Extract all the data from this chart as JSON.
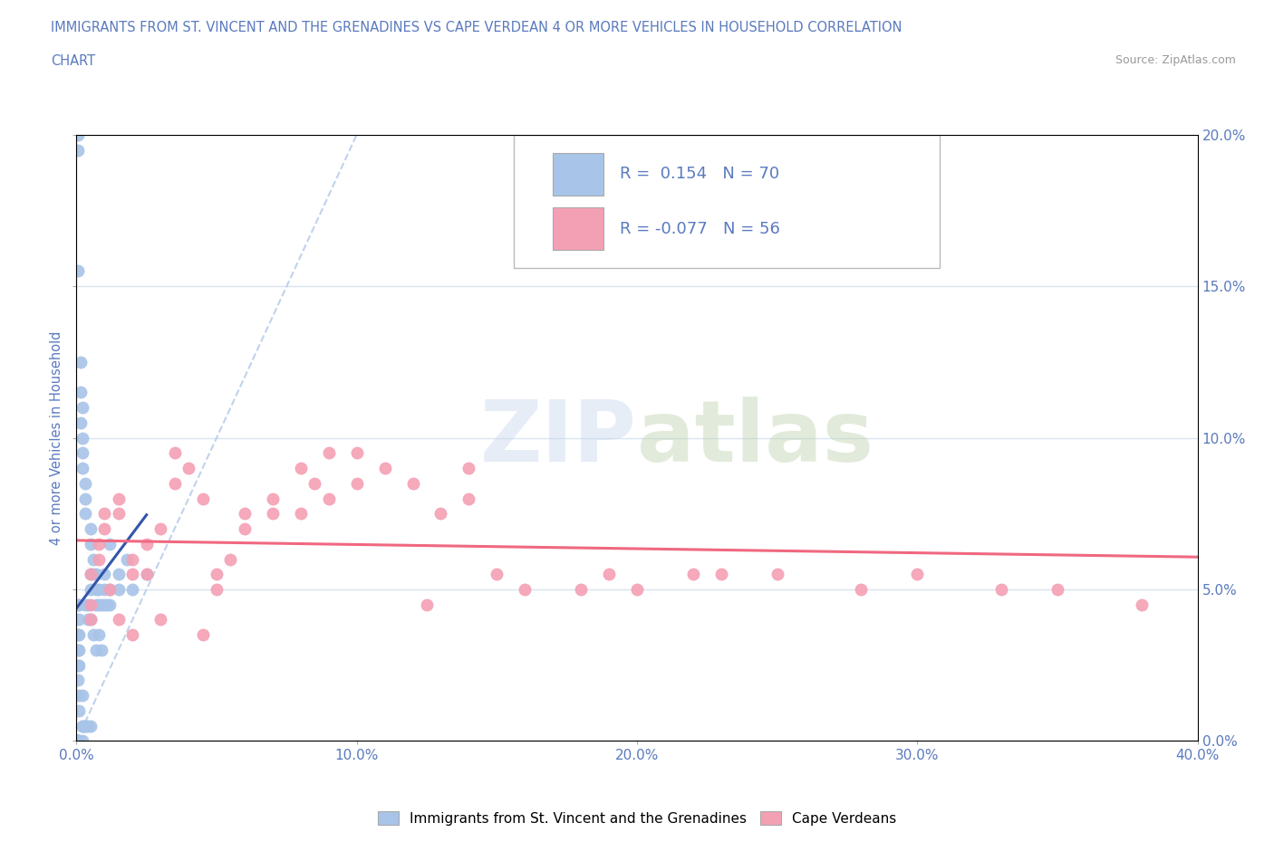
{
  "title_line1": "IMMIGRANTS FROM ST. VINCENT AND THE GRENADINES VS CAPE VERDEAN 4 OR MORE VEHICLES IN HOUSEHOLD CORRELATION",
  "title_line2": "CHART",
  "source_text": "Source: ZipAtlas.com",
  "ylabel": "4 or more Vehicles in Household",
  "legend_label1": "Immigrants from St. Vincent and the Grenadines",
  "legend_label2": "Cape Verdeans",
  "R1": 0.154,
  "N1": 70,
  "R2": -0.077,
  "N2": 56,
  "title_color": "#5a7abf",
  "axis_color": "#5a7abf",
  "blue_color": "#a8c4e8",
  "pink_color": "#f4a0b4",
  "blue_line_color": "#3355aa",
  "pink_line_color": "#f06880",
  "xlim_pct": [
    0,
    40
  ],
  "ylim_pct": [
    0,
    20
  ],
  "x_ticks": [
    0,
    10,
    20,
    30,
    40
  ],
  "y_ticks": [
    0,
    5,
    10,
    15,
    20
  ],
  "blue_x": [
    0.05,
    0.05,
    0.05,
    0.05,
    0.05,
    0.1,
    0.1,
    0.1,
    0.1,
    0.1,
    0.15,
    0.15,
    0.15,
    0.2,
    0.2,
    0.2,
    0.2,
    0.3,
    0.3,
    0.3,
    0.3,
    0.4,
    0.4,
    0.5,
    0.5,
    0.5,
    0.5,
    0.6,
    0.6,
    0.7,
    0.7,
    0.8,
    0.8,
    0.9,
    1.0,
    1.0,
    1.1,
    1.2,
    0.05,
    0.05,
    0.05,
    0.1,
    0.1,
    0.2,
    0.2,
    0.3,
    0.4,
    0.5,
    0.6,
    0.7,
    0.8,
    0.9,
    1.0,
    1.2,
    1.5,
    1.5,
    1.8,
    2.0,
    2.5,
    1.2,
    0.05,
    0.05,
    0.05,
    0.05,
    0.1,
    0.2,
    0.2,
    0.3,
    0.5,
    0.7
  ],
  "blue_y": [
    20.0,
    19.5,
    15.5,
    4.5,
    3.5,
    4.5,
    4.0,
    3.5,
    3.0,
    2.5,
    12.5,
    11.5,
    10.5,
    11.0,
    10.0,
    9.5,
    9.0,
    8.5,
    8.0,
    7.5,
    4.5,
    4.0,
    4.5,
    7.0,
    6.5,
    5.0,
    5.5,
    6.0,
    5.5,
    5.5,
    5.0,
    5.0,
    4.5,
    4.5,
    5.0,
    4.5,
    4.5,
    5.0,
    3.0,
    2.5,
    2.0,
    1.5,
    1.0,
    1.5,
    0.5,
    0.5,
    0.5,
    4.0,
    3.5,
    3.0,
    3.5,
    3.0,
    5.5,
    4.5,
    5.0,
    5.5,
    6.0,
    5.0,
    5.5,
    6.5,
    0.0,
    0.0,
    0.0,
    0.0,
    0.0,
    0.0,
    0.5,
    0.5,
    0.5,
    4.5
  ],
  "pink_x": [
    0.5,
    0.5,
    0.5,
    0.8,
    0.8,
    1.0,
    1.0,
    1.2,
    1.5,
    1.5,
    2.0,
    2.0,
    2.5,
    2.5,
    3.0,
    3.5,
    3.5,
    4.0,
    4.5,
    5.0,
    5.0,
    5.5,
    6.0,
    6.0,
    7.0,
    7.0,
    8.0,
    8.5,
    9.0,
    9.0,
    10.0,
    10.0,
    11.0,
    12.0,
    12.5,
    13.0,
    14.0,
    14.0,
    15.0,
    16.0,
    18.0,
    19.0,
    20.0,
    22.0,
    23.0,
    25.0,
    28.0,
    30.0,
    33.0,
    35.0,
    38.0,
    1.5,
    2.0,
    3.0,
    4.5,
    8.0
  ],
  "pink_y": [
    5.5,
    4.5,
    4.0,
    6.5,
    6.0,
    7.5,
    7.0,
    5.0,
    8.0,
    7.5,
    6.0,
    5.5,
    6.5,
    5.5,
    7.0,
    8.5,
    9.5,
    9.0,
    8.0,
    5.5,
    5.0,
    6.0,
    7.5,
    7.0,
    8.0,
    7.5,
    9.0,
    8.5,
    9.5,
    8.0,
    9.5,
    8.5,
    9.0,
    8.5,
    4.5,
    7.5,
    9.0,
    8.0,
    5.5,
    5.0,
    5.0,
    5.5,
    5.0,
    5.5,
    5.5,
    5.5,
    5.0,
    5.5,
    5.0,
    5.0,
    4.5,
    4.0,
    3.5,
    4.0,
    3.5,
    7.5
  ]
}
